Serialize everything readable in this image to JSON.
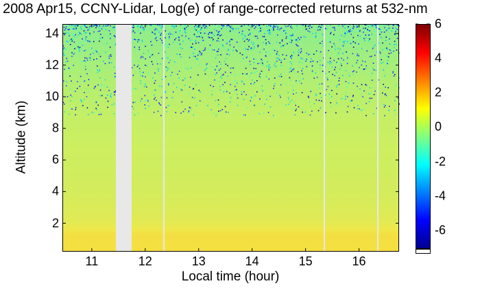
{
  "chart_data": {
    "type": "heatmap",
    "title": "2008 Apr15, CCNY-Lidar, Log(e) of range-corrected returns at 532-nm",
    "xlabel": "Local time (hour)",
    "ylabel": "Altitude (km)",
    "xlim": [
      10.45,
      16.75
    ],
    "ylim": [
      0.2,
      14.6
    ],
    "x_ticks": [
      "11",
      "12",
      "13",
      "14",
      "15",
      "16"
    ],
    "y_ticks": [
      "2",
      "4",
      "6",
      "8",
      "10",
      "12",
      "14"
    ],
    "colorbar": {
      "range": [
        -7,
        6
      ],
      "ticks": [
        "6",
        "4",
        "2",
        "0",
        "-2",
        "-4",
        "-6"
      ],
      "colormap": "jet"
    },
    "data_gaps_hours": [
      [
        11.45,
        11.75
      ],
      [
        12.33,
        12.35
      ],
      [
        15.34,
        15.37
      ],
      [
        16.34,
        16.37
      ]
    ],
    "colors": {
      "boundary_layer": "#f3df42",
      "mid_altitude": "#cdef60",
      "upper_altitude": "#8ded8d",
      "gap": "#e8e8e8"
    }
  }
}
